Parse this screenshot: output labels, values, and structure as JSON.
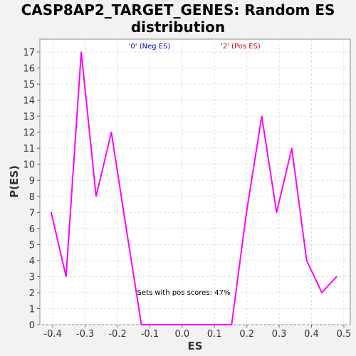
{
  "chart_data": {
    "type": "line",
    "title_line1": "CASP8AP2_TARGET_GENES: Random ES",
    "title_line2": "distribution",
    "xlabel": "ES",
    "ylabel": "P(ES)",
    "xlim": [
      -0.44,
      0.52
    ],
    "ylim": [
      0,
      17.8
    ],
    "x_ticks": [
      -0.4,
      -0.3,
      -0.2,
      -0.1,
      0.0,
      0.1,
      0.2,
      0.3,
      0.4,
      0.5
    ],
    "x_tick_labels": [
      "-0.4",
      "-0.3",
      "-0.2",
      "-0.1",
      "0.0",
      "0.1",
      "0.2",
      "0.3",
      "0.4",
      "0.5"
    ],
    "y_ticks": [
      0,
      1,
      2,
      3,
      4,
      5,
      6,
      7,
      8,
      9,
      10,
      11,
      12,
      13,
      14,
      15,
      16,
      17
    ],
    "y_tick_labels": [
      "0",
      "1",
      "2",
      "3",
      "4",
      "5",
      "6",
      "7",
      "8",
      "9",
      "10",
      "11",
      "12",
      "13",
      "14",
      "15",
      "16",
      "17"
    ],
    "grid": true,
    "legend": [
      {
        "label": "'0' (Neg ES)",
        "color": "#0000cc"
      },
      {
        "label": "'2' (Pos ES)",
        "color": "#cc0000"
      }
    ],
    "annotation": "Sets with pos scores: 47%",
    "series": [
      {
        "color": "#ff00ff",
        "x": [
          -0.405,
          -0.359,
          -0.312,
          -0.266,
          -0.219,
          -0.173,
          -0.126,
          -0.08,
          -0.033,
          0.013,
          0.06,
          0.106,
          0.153,
          0.199,
          0.246,
          0.292,
          0.339,
          0.385,
          0.432,
          0.478
        ],
        "y": [
          7,
          3,
          17,
          8,
          12,
          6,
          0,
          0,
          0,
          0,
          0,
          0,
          0,
          7,
          13,
          7,
          11,
          4,
          2,
          3
        ]
      }
    ]
  }
}
